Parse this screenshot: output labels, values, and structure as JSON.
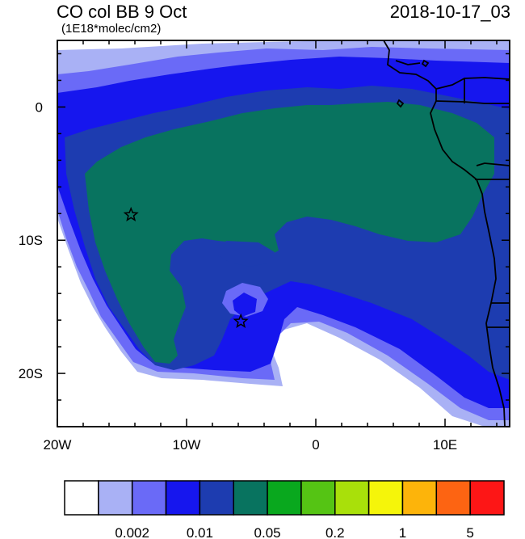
{
  "header": {
    "title": "CO col BB 9 Oct",
    "units": "(1E18*molec/cm2)",
    "datetime": "2018-10-17_03"
  },
  "axes": {
    "x_ticks": [
      {
        "label": "20W",
        "lon": -20
      },
      {
        "label": "10W",
        "lon": -10
      },
      {
        "label": "0",
        "lon": 0
      },
      {
        "label": "10E",
        "lon": 10
      }
    ],
    "y_ticks": [
      {
        "label": "0",
        "lat": 0
      },
      {
        "label": "10S",
        "lat": -10
      },
      {
        "label": "20S",
        "lat": -20
      }
    ],
    "lon_range": [
      -20,
      15
    ],
    "lat_range": [
      -24,
      5
    ]
  },
  "colorbar": {
    "colors": [
      "#ffffff",
      "#a9b1f5",
      "#6a6af7",
      "#1616ee",
      "#1d3cb0",
      "#08735f",
      "#09a81e",
      "#55c414",
      "#a9e00a",
      "#f5f50a",
      "#fdb40a",
      "#fd6412",
      "#fd1616"
    ],
    "labels": [
      {
        "text": "0.002",
        "boundary": 2
      },
      {
        "text": "0.01",
        "boundary": 4
      },
      {
        "text": "0.05",
        "boundary": 6
      },
      {
        "text": "0.2",
        "boundary": 8
      },
      {
        "text": "1",
        "boundary": 10
      },
      {
        "text": "5",
        "boundary": 12
      }
    ]
  },
  "markers": [
    {
      "name": "star-marker-1",
      "lon": -14.3,
      "lat": -8.1
    },
    {
      "name": "star-marker-2",
      "lon": -5.8,
      "lat": -16.1
    }
  ]
}
